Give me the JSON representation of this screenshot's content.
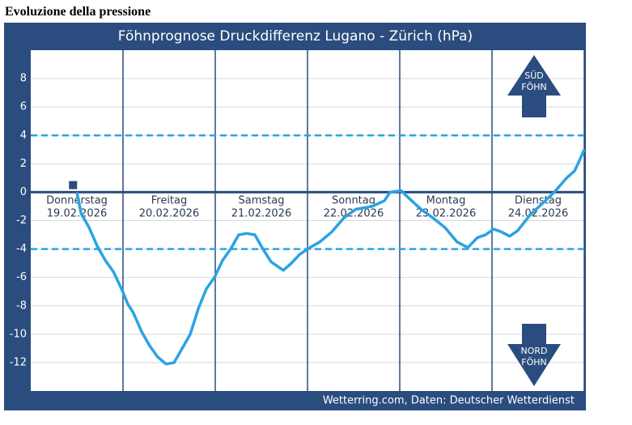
{
  "heading": "Evoluzione della pressione",
  "chart_data": {
    "type": "line",
    "title": "Föhnprognose Druckdifferenz Lugano - Zürich (hPa)",
    "source": "Wetterring.com, Daten: Deutscher Wetterdienst",
    "days": [
      {
        "name": "Donnerstag",
        "date": "19.02.2026"
      },
      {
        "name": "Freitag",
        "date": "20.02.2026"
      },
      {
        "name": "Samstag",
        "date": "21.02.2026"
      },
      {
        "name": "Sonntag",
        "date": "22.02.2026"
      },
      {
        "name": "Montag",
        "date": "23.02.2026"
      },
      {
        "name": "Dienstag",
        "date": "24.02.2026"
      }
    ],
    "x": [
      12,
      13.1,
      15.2,
      17.3,
      19.4,
      21.5,
      23.6,
      25.3,
      26.7,
      28.8,
      30.9,
      33,
      35.2,
      37.3,
      39.4,
      41.5,
      43.6,
      45.7,
      47.8,
      49.9,
      52,
      54.1,
      56.2,
      58.3,
      60.4,
      62.5,
      65.7,
      67.8,
      69.9,
      72,
      75.2,
      78.3,
      81.5,
      84.6,
      88.8,
      92,
      93.5,
      96.4,
      98.3,
      101.5,
      104.6,
      107.8,
      110.9,
      113.7,
      116.2,
      118.3,
      120.4,
      122.5,
      124.6,
      126.7,
      129.9,
      133.1,
      136.2,
      139.4,
      141.5,
      142.7,
      144
    ],
    "values": [
      0,
      -1.5,
      -2.5,
      -3.8,
      -4.8,
      -5.6,
      -6.8,
      -7.9,
      -8.5,
      -9.8,
      -10.8,
      -11.6,
      -12.1,
      -12,
      -11,
      -10,
      -8.2,
      -6.8,
      -6,
      -4.8,
      -4,
      -3,
      -2.9,
      -3,
      -4,
      -4.9,
      -5.5,
      -5,
      -4.4,
      -4,
      -3.5,
      -2.8,
      -1.8,
      -1.2,
      -1,
      -0.6,
      0,
      0.1,
      -0.4,
      -1.2,
      -1.8,
      -2.5,
      -3.5,
      -3.9,
      -3.2,
      -3,
      -2.6,
      -2.8,
      -3.1,
      -2.7,
      -1.6,
      -0.8,
      0,
      1,
      1.5,
      2.2,
      3
    ],
    "color": "#2aa3e2",
    "marker": {
      "x": 11,
      "value": 0.5
    },
    "xlim": [
      0,
      144
    ],
    "ylim": [
      -14,
      10
    ],
    "yticks": [
      -12,
      -10,
      -8,
      -6,
      -4,
      -2,
      0,
      2,
      4,
      6,
      8
    ],
    "thresholds": [
      4,
      -4
    ],
    "arrows": [
      {
        "lines": [
          "SÜD",
          "FÖHN"
        ],
        "direction": "up"
      },
      {
        "lines": [
          "NORD",
          "FÖHN"
        ],
        "direction": "down"
      }
    ],
    "grid": true
  }
}
